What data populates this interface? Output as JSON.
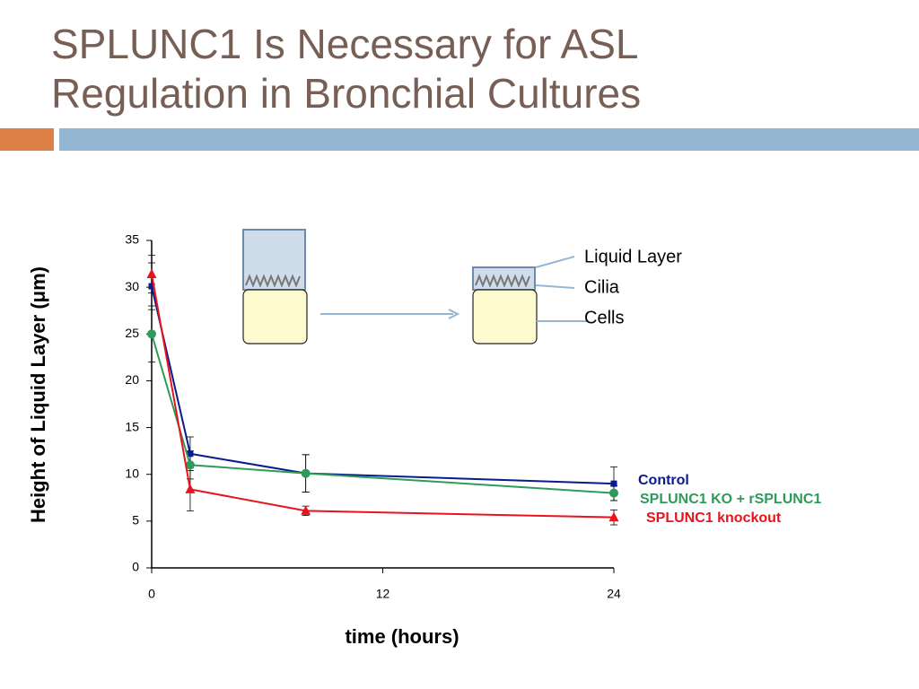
{
  "slide": {
    "title": "SPLUNC1 Is Necessary for ASL Regulation in Bronchial Cultures"
  },
  "diagram": {
    "labels": [
      "Liquid Layer",
      "Cilia",
      "Cells"
    ]
  },
  "chart_data": {
    "type": "line",
    "x_label": "time (hours)",
    "y_label": "Height of Liquid Layer (μm)",
    "x": [
      0,
      2,
      8,
      24
    ],
    "xlim": [
      0,
      24
    ],
    "xticks": [
      0,
      12,
      24
    ],
    "ylim": [
      0,
      35
    ],
    "yticks": [
      0,
      5,
      10,
      15,
      20,
      25,
      30,
      35
    ],
    "series": [
      {
        "name": "Control",
        "color": "#0b1a8c",
        "marker": "square",
        "values": [
          30.1,
          12.2,
          10.1,
          9.0
        ],
        "errors": [
          2.5,
          1.8,
          2.0,
          1.8
        ]
      },
      {
        "name": "SPLUNC1 KO + rSPLUNC1",
        "color": "#2e9b5a",
        "marker": "circle",
        "values": [
          25.0,
          11.0,
          10.1,
          8.0
        ],
        "errors": [
          3.0,
          1.5,
          2.0,
          0.8
        ]
      },
      {
        "name": "SPLUNC1 knockout",
        "color": "#e8141c",
        "marker": "triangle",
        "values": [
          31.4,
          8.4,
          6.1,
          5.4
        ],
        "errors": [
          2.0,
          2.3,
          0.5,
          0.8
        ]
      }
    ]
  }
}
